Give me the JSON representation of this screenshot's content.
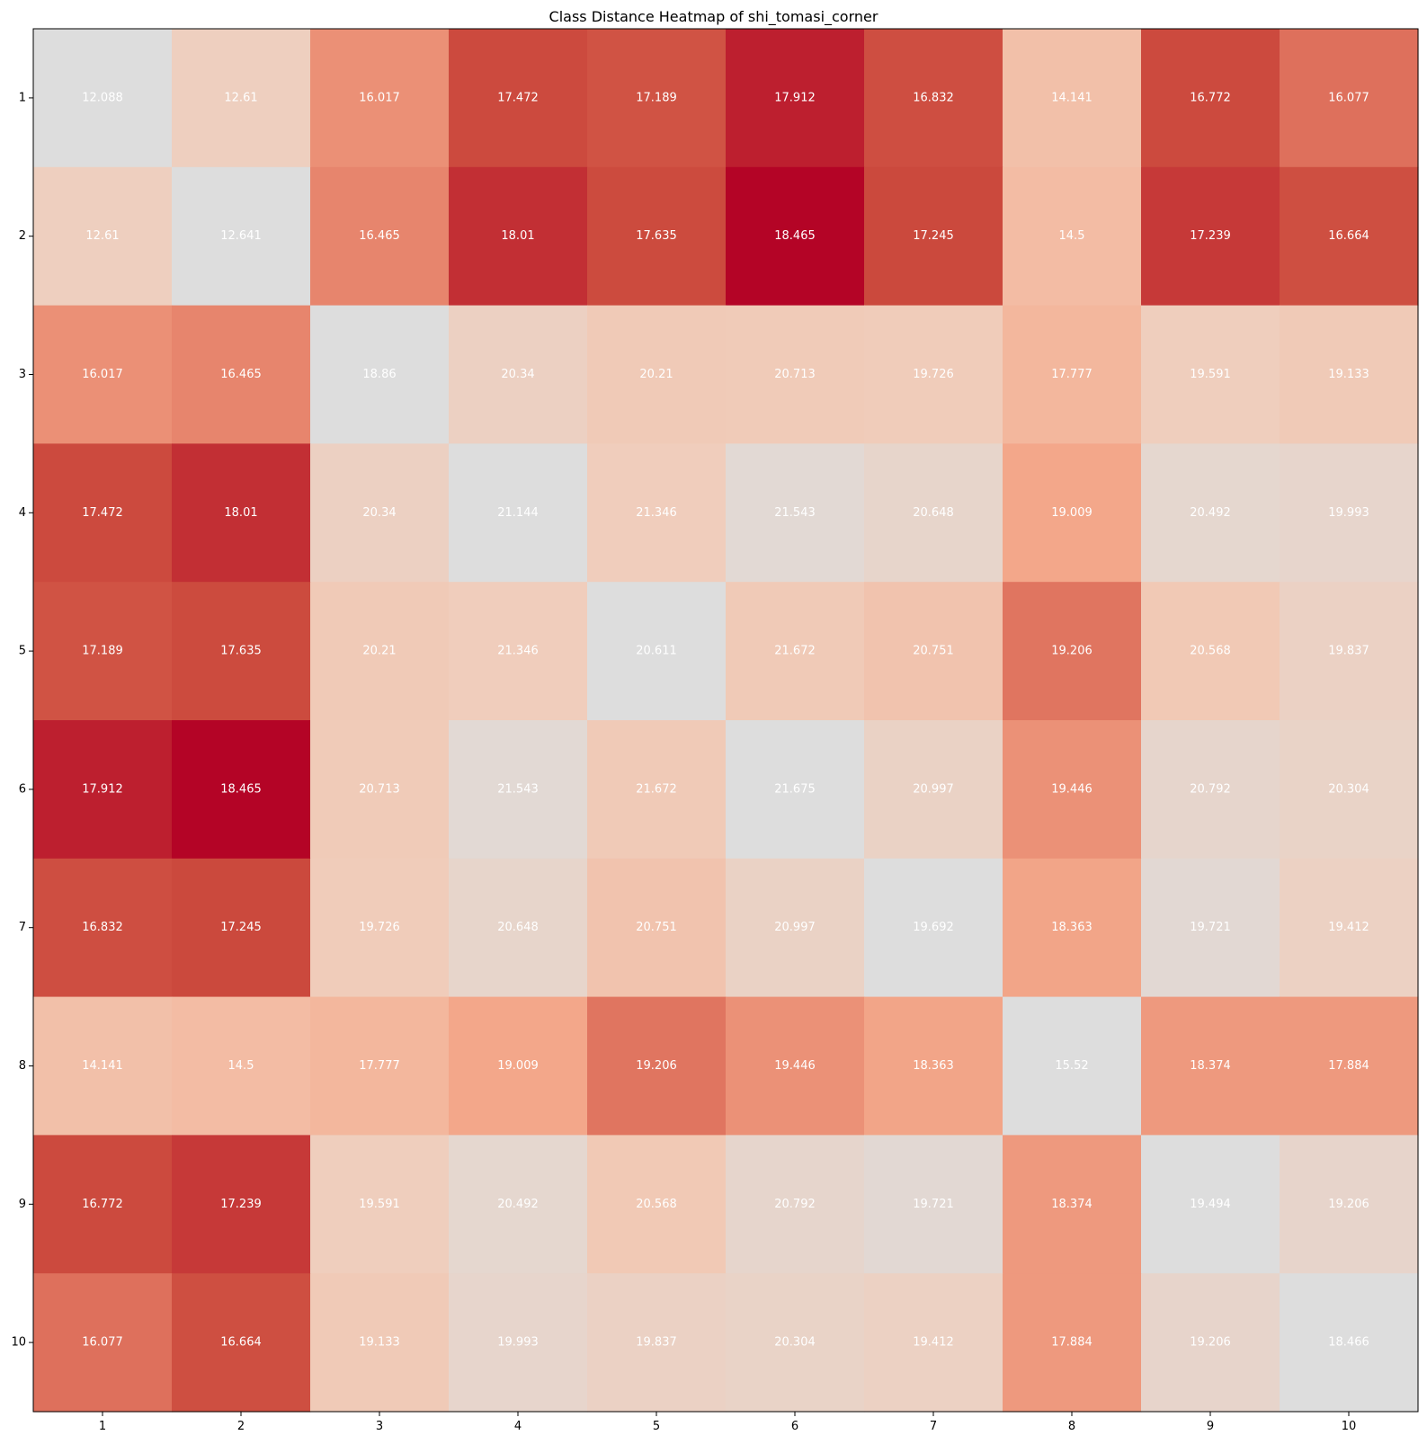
{
  "chart_data": {
    "type": "heatmap",
    "title": "Class Distance Heatmap of shi_tomasi_corner",
    "xlabel": "",
    "ylabel": "",
    "x_categories": [
      "1",
      "2",
      "3",
      "4",
      "5",
      "6",
      "7",
      "8",
      "9",
      "10"
    ],
    "y_categories": [
      "1",
      "2",
      "3",
      "4",
      "5",
      "6",
      "7",
      "8",
      "9",
      "10"
    ],
    "values": [
      [
        12.088,
        12.61,
        16.017,
        17.472,
        17.189,
        17.912,
        16.832,
        14.141,
        16.772,
        16.077
      ],
      [
        12.61,
        12.641,
        16.465,
        18.01,
        17.635,
        18.465,
        17.245,
        14.5,
        17.239,
        16.664
      ],
      [
        16.017,
        16.465,
        18.86,
        20.34,
        20.21,
        20.713,
        19.726,
        17.777,
        19.591,
        19.133
      ],
      [
        17.472,
        18.01,
        20.34,
        21.144,
        21.346,
        21.543,
        20.648,
        19.009,
        20.492,
        19.993
      ],
      [
        17.189,
        17.635,
        20.21,
        21.346,
        20.611,
        21.672,
        20.751,
        19.206,
        20.568,
        19.837
      ],
      [
        17.912,
        18.465,
        20.713,
        21.543,
        21.672,
        21.675,
        20.997,
        19.446,
        20.792,
        20.304
      ],
      [
        16.832,
        17.245,
        19.726,
        20.648,
        20.751,
        20.997,
        19.692,
        18.363,
        19.721,
        19.412
      ],
      [
        14.141,
        14.5,
        17.777,
        19.009,
        19.206,
        19.446,
        18.363,
        15.52,
        18.374,
        17.884
      ],
      [
        16.772,
        17.239,
        19.591,
        20.492,
        20.568,
        20.792,
        19.721,
        18.374,
        19.494,
        19.206
      ],
      [
        16.077,
        16.664,
        19.133,
        19.993,
        19.837,
        20.304,
        19.412,
        17.884,
        19.206,
        18.466
      ]
    ],
    "value_labels": [
      [
        "12.088",
        "12.61",
        "16.017",
        "17.472",
        "17.189",
        "17.912",
        "16.832",
        "14.141",
        "16.772",
        "16.077"
      ],
      [
        "12.61",
        "12.641",
        "16.465",
        "18.01",
        "17.635",
        "18.465",
        "17.245",
        "14.5",
        "17.239",
        "16.664"
      ],
      [
        "16.017",
        "16.465",
        "18.86",
        "20.34",
        "20.21",
        "20.713",
        "19.726",
        "17.777",
        "19.591",
        "19.133"
      ],
      [
        "17.472",
        "18.01",
        "20.34",
        "21.144",
        "21.346",
        "21.543",
        "20.648",
        "19.009",
        "20.492",
        "19.993"
      ],
      [
        "17.189",
        "17.635",
        "20.21",
        "21.346",
        "20.611",
        "21.672",
        "20.751",
        "19.206",
        "20.568",
        "19.837"
      ],
      [
        "17.912",
        "18.465",
        "20.713",
        "21.543",
        "21.672",
        "21.675",
        "20.997",
        "19.446",
        "20.792",
        "20.304"
      ],
      [
        "16.832",
        "17.245",
        "19.726",
        "20.648",
        "20.751",
        "20.997",
        "19.692",
        "18.363",
        "19.721",
        "19.412"
      ],
      [
        "14.141",
        "14.5",
        "17.777",
        "19.009",
        "19.206",
        "19.446",
        "18.363",
        "15.52",
        "18.374",
        "17.884"
      ],
      [
        "16.772",
        "17.239",
        "19.591",
        "20.492",
        "20.568",
        "20.792",
        "19.721",
        "18.374",
        "19.494",
        "19.206"
      ],
      [
        "16.077",
        "16.664",
        "19.133",
        "19.993",
        "19.837",
        "20.304",
        "19.412",
        "17.884",
        "19.206",
        "18.466"
      ]
    ],
    "colormap": "coolwarm",
    "color_scale": "row-column normalized",
    "colorbar": false,
    "grid": false,
    "label_color": "#ffffff"
  }
}
